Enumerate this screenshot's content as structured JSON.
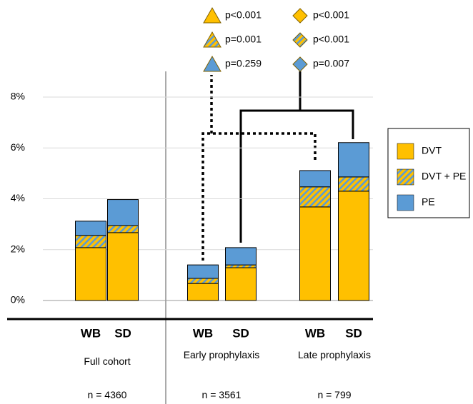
{
  "chart_data": {
    "type": "bar",
    "stacked": true,
    "categories": [
      "WB",
      "SD",
      "WB",
      "SD",
      "WB",
      "SD"
    ],
    "groups": [
      {
        "label": "Full cohort",
        "n": "n = 4360"
      },
      {
        "label": "Early prophylaxis",
        "n": "n = 3561"
      },
      {
        "label": "Late prophylaxis",
        "n": "n = 799"
      }
    ],
    "series": [
      {
        "name": "DVT",
        "color": "#ffc000",
        "values": [
          2.08,
          2.67,
          0.67,
          1.29,
          3.68,
          4.3
        ]
      },
      {
        "name": "DVT + PE",
        "color": "#ffc000",
        "pattern": "hatch",
        "values": [
          0.48,
          0.28,
          0.2,
          0.11,
          0.79,
          0.56
        ]
      },
      {
        "name": "PE",
        "color": "#5b9bd5",
        "values": [
          0.56,
          1.02,
          0.53,
          0.68,
          0.64,
          1.35
        ]
      }
    ],
    "ylim": [
      0,
      8
    ],
    "yticks": [
      {
        "value": 0,
        "label": "0%"
      },
      {
        "value": 2,
        "label": "2%"
      },
      {
        "value": 4,
        "label": "4%"
      },
      {
        "value": 6,
        "label": "6%"
      },
      {
        "value": 8,
        "label": "8%"
      }
    ],
    "grid": true,
    "legend": "right",
    "annotations": [
      {
        "text": "p<0.001",
        "marker": "triangle",
        "series": 0
      },
      {
        "text": "p=0.001",
        "marker": "triangle",
        "series": 1
      },
      {
        "text": "p=0.259",
        "marker": "triangle",
        "series": 2
      },
      {
        "text": "p<0.001",
        "marker": "diamond",
        "series": 0
      },
      {
        "text": "p<0.001",
        "marker": "diamond",
        "series": 1
      },
      {
        "text": "p=0.007",
        "marker": "diamond",
        "series": 2
      }
    ]
  }
}
